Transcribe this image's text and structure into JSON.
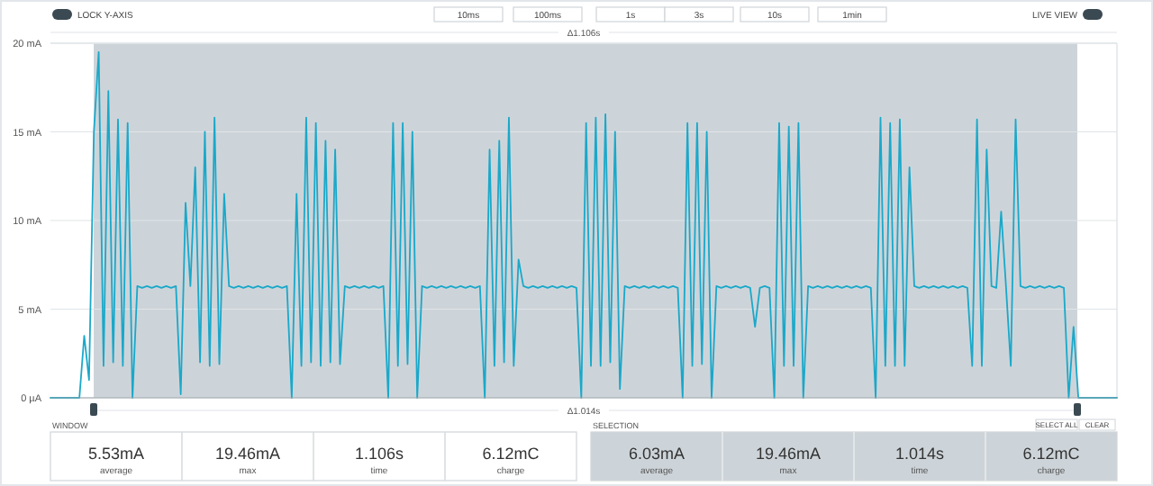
{
  "chart_data": {
    "type": "line",
    "ylim": [
      0,
      20
    ],
    "yticks": [
      {
        "value": 0,
        "label": "0 µA"
      },
      {
        "value": 5,
        "label": "5 mA"
      },
      {
        "value": 10,
        "label": "10 mA"
      },
      {
        "value": 15,
        "label": "15 mA"
      },
      {
        "value": 20,
        "label": "20 mA"
      }
    ],
    "grid": "y",
    "tick_labels": "y",
    "annotations": [
      "Δ1.106s",
      "Δ1.014s",
      "LOCK Y-AXIS",
      "10ms",
      "100ms",
      "1s",
      "3s",
      "10s",
      "1min",
      "LIVE VIEW",
      "WINDOW",
      "SELECTION",
      "SELECT ALL",
      "CLEAR",
      "5.53mA",
      "average",
      "19.46mA",
      "max",
      "1.106s",
      "time",
      "6.12mC",
      "charge",
      "6.03mA",
      "average",
      "19.46mA",
      "max",
      "1.014s",
      "time",
      "6.12mC",
      "charge"
    ],
    "categories": [
      null,
      null,
      null,
      null,
      null,
      null,
      null,
      null,
      null,
      null,
      null,
      null,
      null,
      null,
      null,
      null,
      null,
      null,
      null,
      null,
      null,
      null,
      null,
      null,
      null,
      null,
      null,
      null,
      null,
      null,
      null,
      null,
      null,
      null,
      null,
      null,
      null,
      null,
      null,
      null,
      null,
      null,
      null,
      null,
      null,
      null,
      null,
      null,
      null,
      null,
      null,
      null,
      null,
      null,
      null,
      null,
      null,
      null,
      null,
      null,
      null,
      null,
      null,
      null,
      null,
      null,
      null,
      null,
      null,
      null,
      null,
      null,
      null,
      null,
      null,
      null,
      null,
      null,
      null,
      null,
      null,
      null,
      null,
      null,
      null,
      null,
      null,
      null,
      null,
      null,
      null,
      null,
      null,
      null,
      null,
      null,
      null,
      null,
      null,
      null,
      null,
      null,
      null,
      null,
      null,
      null,
      null,
      null,
      null,
      null,
      null,
      null,
      null,
      null,
      null,
      null,
      null,
      null,
      null,
      null,
      null,
      null,
      null,
      null,
      null,
      null,
      null,
      null,
      null,
      null,
      null,
      null,
      null,
      null,
      null,
      null,
      null,
      null,
      null,
      null,
      null,
      null,
      null,
      null,
      null,
      null,
      null,
      null,
      null,
      null,
      null,
      null,
      null,
      null,
      null,
      null,
      null,
      null,
      null,
      null,
      null,
      null,
      null,
      null,
      null,
      null,
      null,
      null,
      null,
      null,
      null,
      null,
      null,
      null,
      null,
      null,
      null,
      null,
      null,
      null,
      null,
      null,
      null,
      null,
      null,
      null,
      null,
      null,
      null,
      null,
      null,
      null,
      null,
      null,
      null,
      null,
      null,
      null,
      null,
      null,
      null,
      null,
      null,
      null,
      null,
      null,
      null,
      null,
      null,
      null,
      null,
      null,
      null,
      null,
      null,
      null,
      null,
      null,
      null,
      null,
      null,
      null
    ],
    "series": [
      {
        "color": "#1aa8c9",
        "values": [
          0,
          0,
          0,
          0,
          0,
          0,
          0,
          3.5,
          1,
          15,
          19.5,
          1.8,
          17.3,
          2,
          15.7,
          1.8,
          15.5,
          0,
          6.3,
          6.2,
          6.3,
          6.2,
          6.3,
          6.2,
          6.3,
          6.2,
          6.3,
          0.2,
          11,
          6.3,
          13,
          2,
          15,
          1.8,
          15.8,
          1.9,
          11.5,
          6.3,
          6.2,
          6.3,
          6.2,
          6.3,
          6.2,
          6.3,
          6.2,
          6.3,
          6.2,
          6.3,
          6.2,
          6.3,
          0,
          11.5,
          1.8,
          15.8,
          2,
          15.5,
          1.8,
          14.5,
          2,
          14,
          1.9,
          6.3,
          6.2,
          6.3,
          6.2,
          6.3,
          6.2,
          6.3,
          6.2,
          6.3,
          0,
          15.5,
          1.8,
          15.5,
          1.9,
          15,
          0,
          6.3,
          6.2,
          6.3,
          6.2,
          6.3,
          6.2,
          6.3,
          6.2,
          6.3,
          6.2,
          6.3,
          6.2,
          6.3,
          0,
          14,
          1.8,
          14.5,
          2,
          15.8,
          1.8,
          7.8,
          6.3,
          6.2,
          6.3,
          6.2,
          6.3,
          6.2,
          6.3,
          6.2,
          6.3,
          6.2,
          6.3,
          6.2,
          0,
          15.5,
          1.8,
          15.8,
          1.8,
          16,
          2,
          15,
          0.5,
          6.3,
          6.2,
          6.3,
          6.2,
          6.3,
          6.2,
          6.3,
          6.2,
          6.3,
          6.2,
          6.3,
          6.2,
          0,
          15.5,
          1.8,
          15.5,
          1.9,
          15,
          0,
          6.3,
          6.2,
          6.3,
          6.2,
          6.3,
          6.2,
          6.3,
          6.2,
          4,
          6.2,
          6.3,
          6.2,
          0,
          15.5,
          1.8,
          15.3,
          1.8,
          15.5,
          0,
          6.3,
          6.2,
          6.3,
          6.2,
          6.3,
          6.2,
          6.3,
          6.2,
          6.3,
          6.2,
          6.3,
          6.2,
          6.3,
          6.2,
          0,
          15.8,
          1.8,
          15.5,
          1.8,
          15.7,
          1.8,
          13,
          6.3,
          6.2,
          6.3,
          6.2,
          6.3,
          6.2,
          6.3,
          6.2,
          6.3,
          6.2,
          6.3,
          6.2,
          1.8,
          15.7,
          1.8,
          14,
          6.3,
          6.2,
          10.5,
          6.3,
          1.8,
          15.7,
          6.3,
          6.2,
          6.3,
          6.2,
          6.3,
          6.2,
          6.3,
          6.2,
          6.3,
          6.2,
          0,
          4,
          0,
          0,
          0,
          0,
          0,
          0,
          0,
          0,
          0
        ]
      }
    ]
  }
}
